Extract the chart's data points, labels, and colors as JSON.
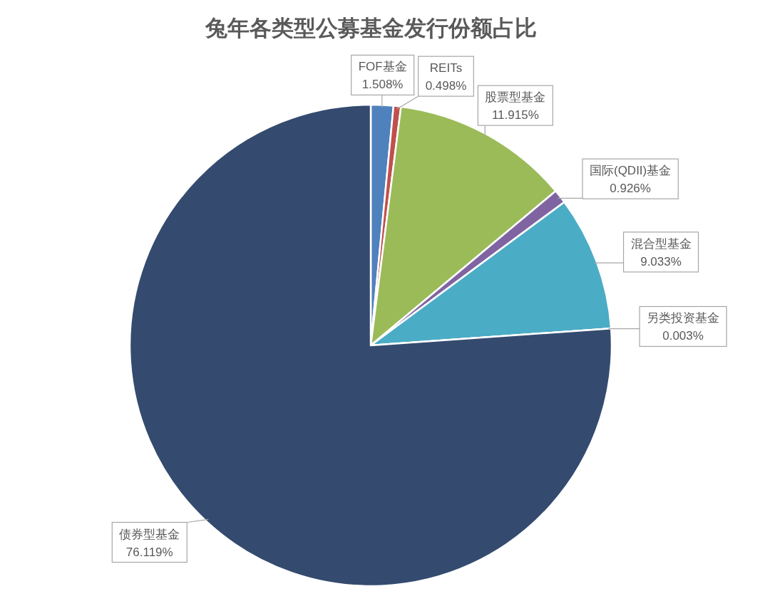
{
  "chart_data": {
    "type": "pie",
    "title": "兔年各类型公募基金发行份额占比",
    "categories": [
      "FOF基金",
      "REITs",
      "股票型基金",
      "国际(QDII)基金",
      "混合型基金",
      "另类投资基金",
      "债券型基金"
    ],
    "values": [
      1.508,
      0.498,
      11.915,
      0.926,
      9.033,
      0.003,
      76.119
    ],
    "value_labels": [
      "1.508%",
      "0.498%",
      "11.915%",
      "0.926%",
      "9.033%",
      "0.003%",
      "76.119%"
    ],
    "colors": [
      "#4f81bd",
      "#c0504d",
      "#9bbb59",
      "#8064a2",
      "#4bacc6",
      "#f79646",
      "#344b6f"
    ]
  }
}
